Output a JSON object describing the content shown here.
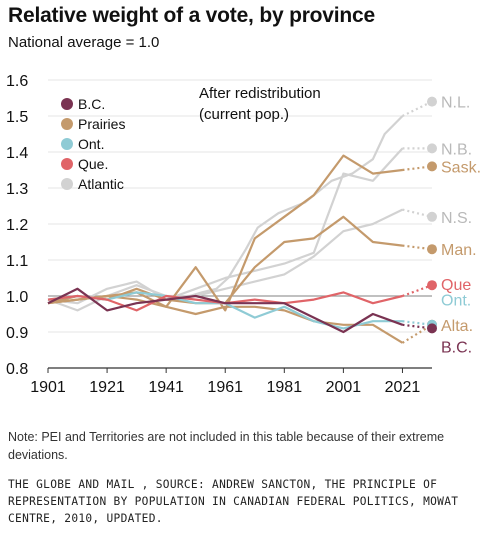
{
  "title": "Relative weight of a vote, by province",
  "subtitle": "National average = 1.0",
  "note": "Note: PEI and Territories are not included in this table because of their extreme deviations.",
  "credit": "THE GLOBE AND MAIL , SOURCE: ANDREW SANCTON, THE PRINCIPLE OF REPRESENTATION BY POPULATION IN CANADIAN FEDERAL POLITICS, MOWAT CENTRE, 2010, UPDATED.",
  "chart_data": {
    "type": "line",
    "title": "Relative weight of a vote, by province",
    "subtitle": "National average = 1.0",
    "xlim": [
      1901,
      2031
    ],
    "ylim": [
      0.8,
      1.6
    ],
    "xticks": [
      1901,
      1921,
      1941,
      1961,
      1981,
      2001,
      2021
    ],
    "yticks": [
      "0.8",
      "0.9",
      "1.0",
      "1.1",
      "1.2",
      "1.3",
      "1.4",
      "1.5",
      "1.6"
    ],
    "grid": "horizontal",
    "legend_position": "top-left",
    "legend": [
      {
        "label": "B.C.",
        "color": "#7a3352"
      },
      {
        "label": "Prairies",
        "color": "#c49a6c"
      },
      {
        "label": "Ont.",
        "color": "#8fcbd5"
      },
      {
        "label": "Que.",
        "color": "#e06468"
      },
      {
        "label": "Atlantic",
        "color": "#d2d2d2"
      }
    ],
    "annotation": [
      "After redistribution",
      "(current pop.)"
    ],
    "projection_year": 2023,
    "projection_end": 2031,
    "series": [
      {
        "name": "N.L.",
        "group": "Atlantic",
        "color": "#d2d2d2",
        "x": [
          1949,
          1953,
          1958,
          1962,
          1968,
          1972,
          1979,
          1988,
          1997,
          2004,
          2011,
          2015,
          2021
        ],
        "y": [
          1.0,
          1.01,
          1.02,
          1.05,
          1.13,
          1.19,
          1.23,
          1.26,
          1.32,
          1.34,
          1.38,
          1.45,
          1.5
        ],
        "projection": 1.54
      },
      {
        "name": "N.B.",
        "group": "Atlantic",
        "color": "#d2d2d2",
        "x": [
          1901,
          1911,
          1921,
          1931,
          1941,
          1951,
          1961,
          1971,
          1981,
          1991,
          2001,
          2011,
          2021
        ],
        "y": [
          0.99,
          0.98,
          1.02,
          1.04,
          0.99,
          1.02,
          1.05,
          1.07,
          1.09,
          1.12,
          1.34,
          1.32,
          1.41
        ],
        "projection": 1.41
      },
      {
        "name": "N.S.",
        "group": "Atlantic",
        "color": "#d2d2d2",
        "x": [
          1901,
          1911,
          1921,
          1931,
          1941,
          1951,
          1961,
          1971,
          1981,
          1991,
          2001,
          2011,
          2021
        ],
        "y": [
          0.99,
          0.96,
          1.0,
          1.03,
          1.0,
          1.0,
          1.02,
          1.04,
          1.06,
          1.11,
          1.18,
          1.2,
          1.24
        ],
        "projection": 1.22
      },
      {
        "name": "Sask.",
        "group": "Prairies",
        "color": "#c49a6c",
        "x": [
          1901,
          1911,
          1921,
          1931,
          1941,
          1951,
          1961,
          1971,
          1981,
          1991,
          2001,
          2011,
          2021
        ],
        "y": [
          0.98,
          0.99,
          1.0,
          1.01,
          0.97,
          1.08,
          0.96,
          1.16,
          1.22,
          1.28,
          1.39,
          1.34,
          1.35
        ],
        "projection": 1.36
      },
      {
        "name": "Man.",
        "group": "Prairies",
        "color": "#c49a6c",
        "x": [
          1901,
          1911,
          1921,
          1931,
          1941,
          1951,
          1961,
          1971,
          1981,
          1991,
          2001,
          2011,
          2021
        ],
        "y": [
          0.98,
          1.0,
          0.99,
          1.02,
          0.99,
          0.98,
          0.98,
          1.08,
          1.15,
          1.16,
          1.22,
          1.15,
          1.14
        ],
        "projection": 1.13
      },
      {
        "name": "Alta.",
        "group": "Prairies",
        "color": "#c49a6c",
        "x": [
          1901,
          1911,
          1921,
          1931,
          1941,
          1951,
          1961,
          1971,
          1981,
          1991,
          2001,
          2011,
          2021
        ],
        "y": [
          0.98,
          0.99,
          1.0,
          0.99,
          0.97,
          0.95,
          0.97,
          0.97,
          0.96,
          0.93,
          0.92,
          0.92,
          0.87
        ],
        "projection": 0.92
      },
      {
        "name": "Ont.",
        "group": "Ont.",
        "color": "#8fcbd5",
        "x": [
          1901,
          1911,
          1921,
          1931,
          1941,
          1951,
          1961,
          1971,
          1981,
          1991,
          2001,
          2011,
          2021
        ],
        "y": [
          0.99,
          1.0,
          0.99,
          1.01,
          1.0,
          0.98,
          0.98,
          0.94,
          0.97,
          0.93,
          0.91,
          0.93,
          0.93
        ],
        "projection": 0.92
      },
      {
        "name": "Que",
        "group": "Que.",
        "color": "#e06468",
        "x": [
          1901,
          1911,
          1921,
          1931,
          1941,
          1951,
          1961,
          1971,
          1981,
          1991,
          2001,
          2011,
          2021
        ],
        "y": [
          0.99,
          1.0,
          0.99,
          0.96,
          1.0,
          0.99,
          0.98,
          0.99,
          0.98,
          0.99,
          1.01,
          0.98,
          1.0
        ],
        "projection": 1.03
      },
      {
        "name": "B.C.",
        "group": "B.C.",
        "color": "#7a3352",
        "x": [
          1901,
          1911,
          1921,
          1931,
          1941,
          1951,
          1961,
          1971,
          1981,
          1991,
          2001,
          2011,
          2021
        ],
        "y": [
          0.98,
          1.02,
          0.96,
          0.98,
          0.99,
          1.0,
          0.98,
          0.98,
          0.98,
          0.94,
          0.9,
          0.95,
          0.92
        ],
        "projection": 0.91
      }
    ]
  }
}
